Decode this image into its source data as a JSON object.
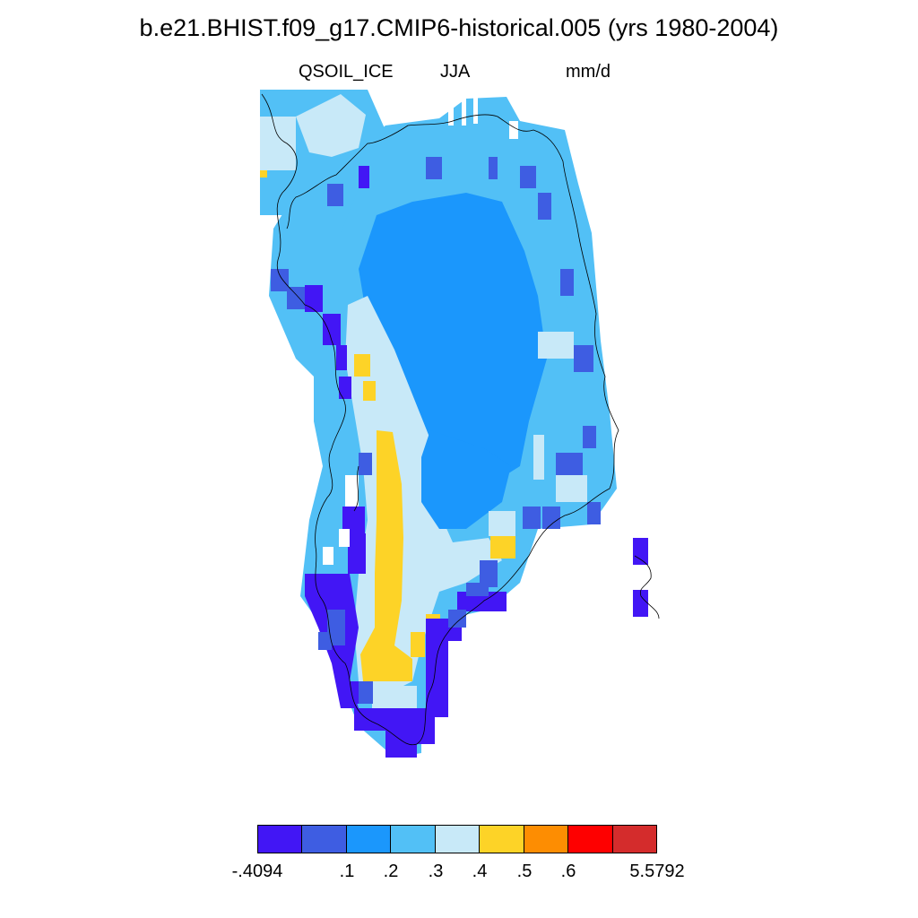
{
  "title": "b.e21.BHIST.f09_g17.CMIP6-historical.005 (yrs 1980-2004)",
  "variable": "QSOIL_ICE",
  "season": "JJA",
  "units": "mm/d",
  "colorbar": {
    "colors": [
      "#4216f5",
      "#3e5de2",
      "#1b97fc",
      "#52c0f6",
      "#c8e9f8",
      "#fdd327",
      "#fd8d02",
      "#fe0000",
      "#d42c2c"
    ],
    "labels": [
      "-.4094",
      ".1",
      ".2",
      ".3",
      ".4",
      ".5",
      ".6",
      "5.5792"
    ]
  },
  "map_layers": {
    "ice_sheet_interior_class": "#1b97fc",
    "margin_class": "#52c0f6",
    "west_slope_class": "#c8e9f8",
    "highest_class_on_map": "#fdd327",
    "lowest_class_on_map": "#4216f5",
    "coastline_color": "#000000"
  }
}
